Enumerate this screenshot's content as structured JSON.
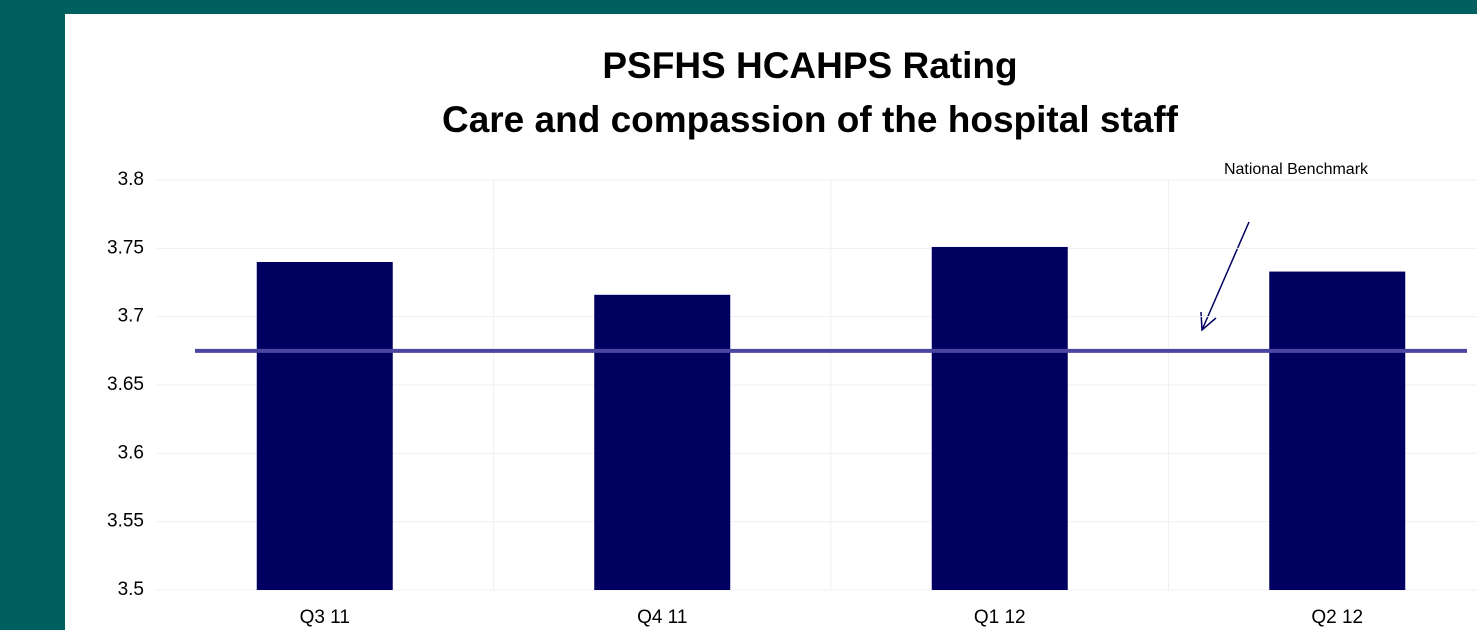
{
  "chart_data": {
    "type": "bar",
    "title": "PSFHS HCAHPS Rating",
    "subtitle": "Care and compassion of the hospital staff",
    "categories": [
      "Q3 11",
      "Q4 11",
      "Q1 12",
      "Q2 12"
    ],
    "values": [
      3.74,
      3.716,
      3.751,
      3.733
    ],
    "color": "#000060",
    "ylim": [
      3.5,
      3.8
    ],
    "yticks": [
      3.5,
      3.55,
      3.6,
      3.65,
      3.7,
      3.75,
      3.8
    ],
    "grid": true,
    "benchmark": {
      "label": "National Benchmark",
      "value": 3.675,
      "color": "#4b46a0"
    }
  }
}
